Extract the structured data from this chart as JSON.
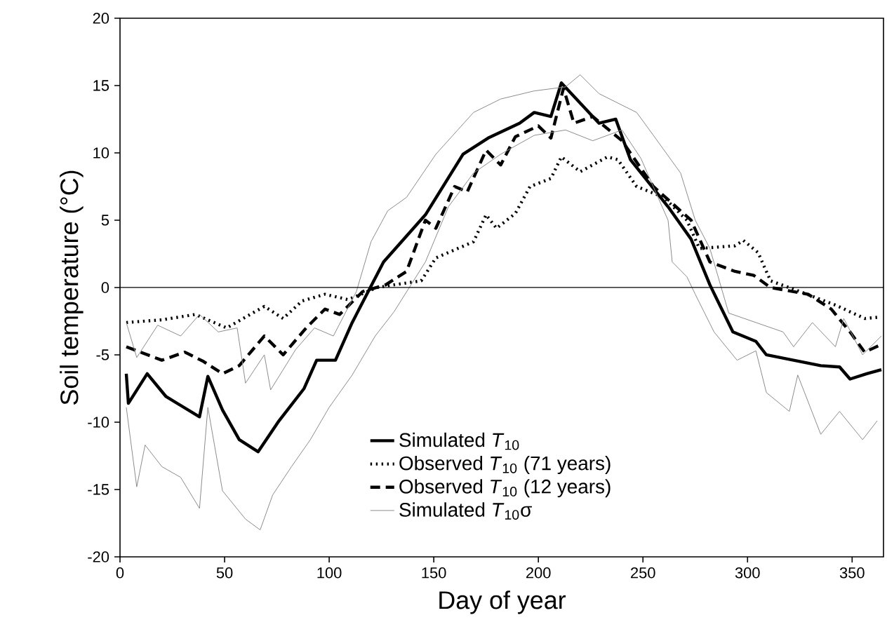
{
  "chart_data": {
    "type": "line",
    "xlabel": "Day of year",
    "ylabel": "Soil temperature (°C)",
    "xlim": [
      0,
      365
    ],
    "xticks": [
      0,
      50,
      100,
      150,
      200,
      250,
      300,
      350
    ],
    "ylim": [
      -20,
      20
    ],
    "yticks": [
      -20,
      -15,
      -10,
      -5,
      0,
      5,
      10,
      15,
      20
    ],
    "grid": false,
    "legend": "bottom right",
    "ref_lines": [
      {
        "axis": "y",
        "value": 0,
        "color": "#000000"
      }
    ],
    "series": [
      {
        "name": "Simulated *T*$_{10}$",
        "color": "#000000",
        "line_style": "solid",
        "x": [
          3,
          4,
          13,
          22,
          38,
          42,
          49,
          57,
          66,
          76,
          88,
          94,
          103,
          111,
          126,
          146,
          164,
          176,
          191,
          198,
          206,
          211,
          220,
          229,
          237,
          244,
          262,
          273,
          282,
          293,
          304,
          309,
          322,
          335,
          344,
          349,
          357,
          364
        ],
        "values": [
          -6.4,
          -8.6,
          -6.4,
          -8.1,
          -9.6,
          -6.6,
          -9.1,
          -11.3,
          -12.2,
          -9.9,
          -7.5,
          -5.4,
          -5.4,
          -2.6,
          1.9,
          5.4,
          9.9,
          11.1,
          12.2,
          13.0,
          12.7,
          15.2,
          13.7,
          12.2,
          12.5,
          9.5,
          6.0,
          3.6,
          0.2,
          -3.3,
          -4.0,
          -5.0,
          -5.4,
          -5.8,
          -5.9,
          -6.8,
          -6.4,
          -6.1
        ]
      },
      {
        "name": "Observed *T*$_{10}$ (71 years)",
        "color": "#000000",
        "line_style": "dotted",
        "x": [
          3,
          20,
          36,
          51,
          69,
          78,
          87,
          98,
          109,
          123,
          131,
          144,
          151,
          160,
          169,
          175,
          180,
          189,
          196,
          206,
          211,
          220,
          233,
          238,
          247,
          260,
          271,
          277,
          294,
          298,
          305,
          311,
          325,
          342,
          356,
          363
        ],
        "values": [
          -2.6,
          -2.4,
          -2.0,
          -3.0,
          -1.4,
          -2.3,
          -1.0,
          -0.5,
          -0.9,
          0,
          0.2,
          0.5,
          2.2,
          2.8,
          3.4,
          5.4,
          4.4,
          5.5,
          7.5,
          8.1,
          9.7,
          8.6,
          9.7,
          9.5,
          7.5,
          6.7,
          5.0,
          2.9,
          3.1,
          3.5,
          2.6,
          0.5,
          -0.3,
          -1.3,
          -2.3,
          -2.2
        ]
      },
      {
        "name": "Observed *T*$_{10}$ (12 years)",
        "color": "#000000",
        "line_style": "dashed",
        "x": [
          3,
          20,
          31,
          40,
          49,
          57,
          69,
          78,
          89,
          98,
          105,
          116,
          127,
          137,
          146,
          151,
          160,
          166,
          175,
          182,
          189,
          200,
          206,
          212,
          217,
          226,
          240,
          255,
          273,
          282,
          294,
          303,
          311,
          329,
          340,
          349,
          356,
          363
        ],
        "values": [
          -4.4,
          -5.4,
          -4.8,
          -5.5,
          -6.4,
          -5.8,
          -3.6,
          -5.0,
          -3.0,
          -1.6,
          -2.0,
          -0.3,
          0.2,
          1.2,
          5.0,
          4.4,
          7.5,
          7.1,
          10.2,
          9.1,
          11.2,
          12.0,
          11.1,
          14.8,
          12.2,
          12.7,
          10.9,
          7.5,
          5.0,
          1.9,
          1.2,
          0.9,
          0,
          -0.5,
          -1.6,
          -3.3,
          -4.8,
          -4.3
        ]
      },
      {
        "name": "Simulated *T*$_{10}$σ",
        "color": "#8c8c8c",
        "line_style": "solid",
        "x": [
          3,
          8,
          18,
          29,
          38,
          47,
          56,
          60,
          69,
          72,
          84,
          93,
          102,
          113,
          120,
          128,
          137,
          151,
          169,
          182,
          198,
          213,
          220,
          229,
          247,
          255,
          268,
          275,
          282,
          291,
          304,
          317,
          322,
          331,
          342,
          346,
          355,
          364
        ],
        "values": [
          -2.6,
          -5.2,
          -2.8,
          -3.6,
          -2.0,
          -3.3,
          -3.0,
          -7.1,
          -5.0,
          -7.6,
          -4.6,
          -3.0,
          -3.6,
          -0.3,
          3.4,
          5.7,
          6.7,
          9.9,
          13.0,
          14.0,
          14.6,
          14.9,
          15.8,
          14.4,
          13.0,
          11.3,
          8.5,
          5.0,
          2.9,
          -1.9,
          -2.6,
          -3.3,
          -4.4,
          -2.6,
          -4.4,
          -2.3,
          -5.0,
          -3.6
        ]
      },
      {
        "color": "#8c8c8c",
        "line_style": "solid",
        "x": [
          3,
          8,
          12,
          20,
          29,
          38,
          42,
          49,
          60,
          67,
          73,
          82,
          91,
          100,
          111,
          122,
          131,
          146,
          157,
          169,
          182,
          198,
          213,
          226,
          240,
          249,
          262,
          264,
          271,
          275,
          284,
          295,
          304,
          309,
          320,
          324,
          335,
          344,
          355,
          362
        ],
        "values": [
          -8.9,
          -14.8,
          -11.7,
          -13.3,
          -14.1,
          -16.4,
          -8.9,
          -15.1,
          -17.2,
          -18.0,
          -15.4,
          -13.3,
          -11.3,
          -8.9,
          -6.5,
          -3.6,
          -1.8,
          1.9,
          6.0,
          8.5,
          9.9,
          11.3,
          11.7,
          10.9,
          11.7,
          9.6,
          5.0,
          1.9,
          0.8,
          -0.5,
          -3.3,
          -5.4,
          -4.7,
          -7.8,
          -9.2,
          -6.5,
          -10.9,
          -9.2,
          -11.3,
          -9.9
        ]
      }
    ]
  }
}
